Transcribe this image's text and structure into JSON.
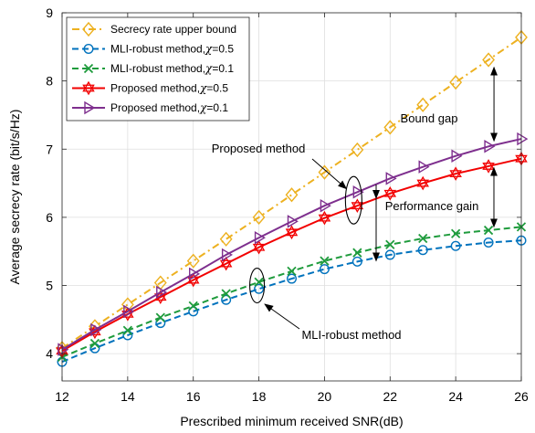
{
  "chart_data": {
    "type": "line",
    "title": "",
    "xlabel": "Prescribed minimum received SNR(dB)",
    "ylabel": "Average secrecy rate (bit/s/Hz)",
    "xlim": [
      12,
      26
    ],
    "ylim": [
      3.6,
      9
    ],
    "xticks": [
      12,
      14,
      16,
      18,
      20,
      22,
      24,
      26
    ],
    "yticks": [
      4,
      5,
      6,
      7,
      8,
      9
    ],
    "grid": true,
    "legend_position": "top-left",
    "x": [
      12,
      13,
      14,
      15,
      16,
      17,
      18,
      19,
      20,
      21,
      22,
      23,
      24,
      25,
      26
    ],
    "series": [
      {
        "name": "Secrecy rate upper bound",
        "color": "#EDB120",
        "marker": "diamond",
        "line": "dashdot",
        "values": [
          4.08,
          4.4,
          4.72,
          5.04,
          5.36,
          5.68,
          6.0,
          6.33,
          6.66,
          6.99,
          7.32,
          7.65,
          7.98,
          8.31,
          8.64
        ]
      },
      {
        "name": "MLI-robust method,",
        "symbol": "χ",
        "param": "=0.5",
        "color": "#0072BD",
        "marker": "circle",
        "line": "dash",
        "values": [
          3.88,
          4.08,
          4.27,
          4.45,
          4.62,
          4.79,
          4.95,
          5.1,
          5.24,
          5.35,
          5.45,
          5.52,
          5.58,
          5.63,
          5.66
        ]
      },
      {
        "name": "MLI-robust method,",
        "symbol": "χ",
        "param": "=0.1",
        "color": "#1E9B3C",
        "marker": "x",
        "line": "dash",
        "values": [
          3.95,
          4.15,
          4.34,
          4.53,
          4.7,
          4.88,
          5.05,
          5.21,
          5.36,
          5.48,
          5.6,
          5.69,
          5.76,
          5.81,
          5.86
        ]
      },
      {
        "name": "Proposed method,",
        "symbol": "χ",
        "param": "=0.5",
        "color": "#F20000",
        "marker": "hexagram",
        "line": "solid",
        "values": [
          4.04,
          4.32,
          4.58,
          4.83,
          5.08,
          5.32,
          5.56,
          5.78,
          5.99,
          6.17,
          6.35,
          6.5,
          6.64,
          6.75,
          6.86
        ]
      },
      {
        "name": "Proposed method,",
        "symbol": "χ",
        "param": "=0.1",
        "color": "#7E2F8E",
        "marker": "triangle-right",
        "line": "solid",
        "values": [
          4.06,
          4.35,
          4.62,
          4.9,
          5.17,
          5.45,
          5.7,
          5.94,
          6.17,
          6.37,
          6.57,
          6.74,
          6.9,
          7.04,
          7.15
        ]
      }
    ],
    "annotations": [
      {
        "text": "Bound gap"
      },
      {
        "text": "Proposed method"
      },
      {
        "text": "Performance gain"
      },
      {
        "text": "MLI-robust method"
      }
    ]
  }
}
